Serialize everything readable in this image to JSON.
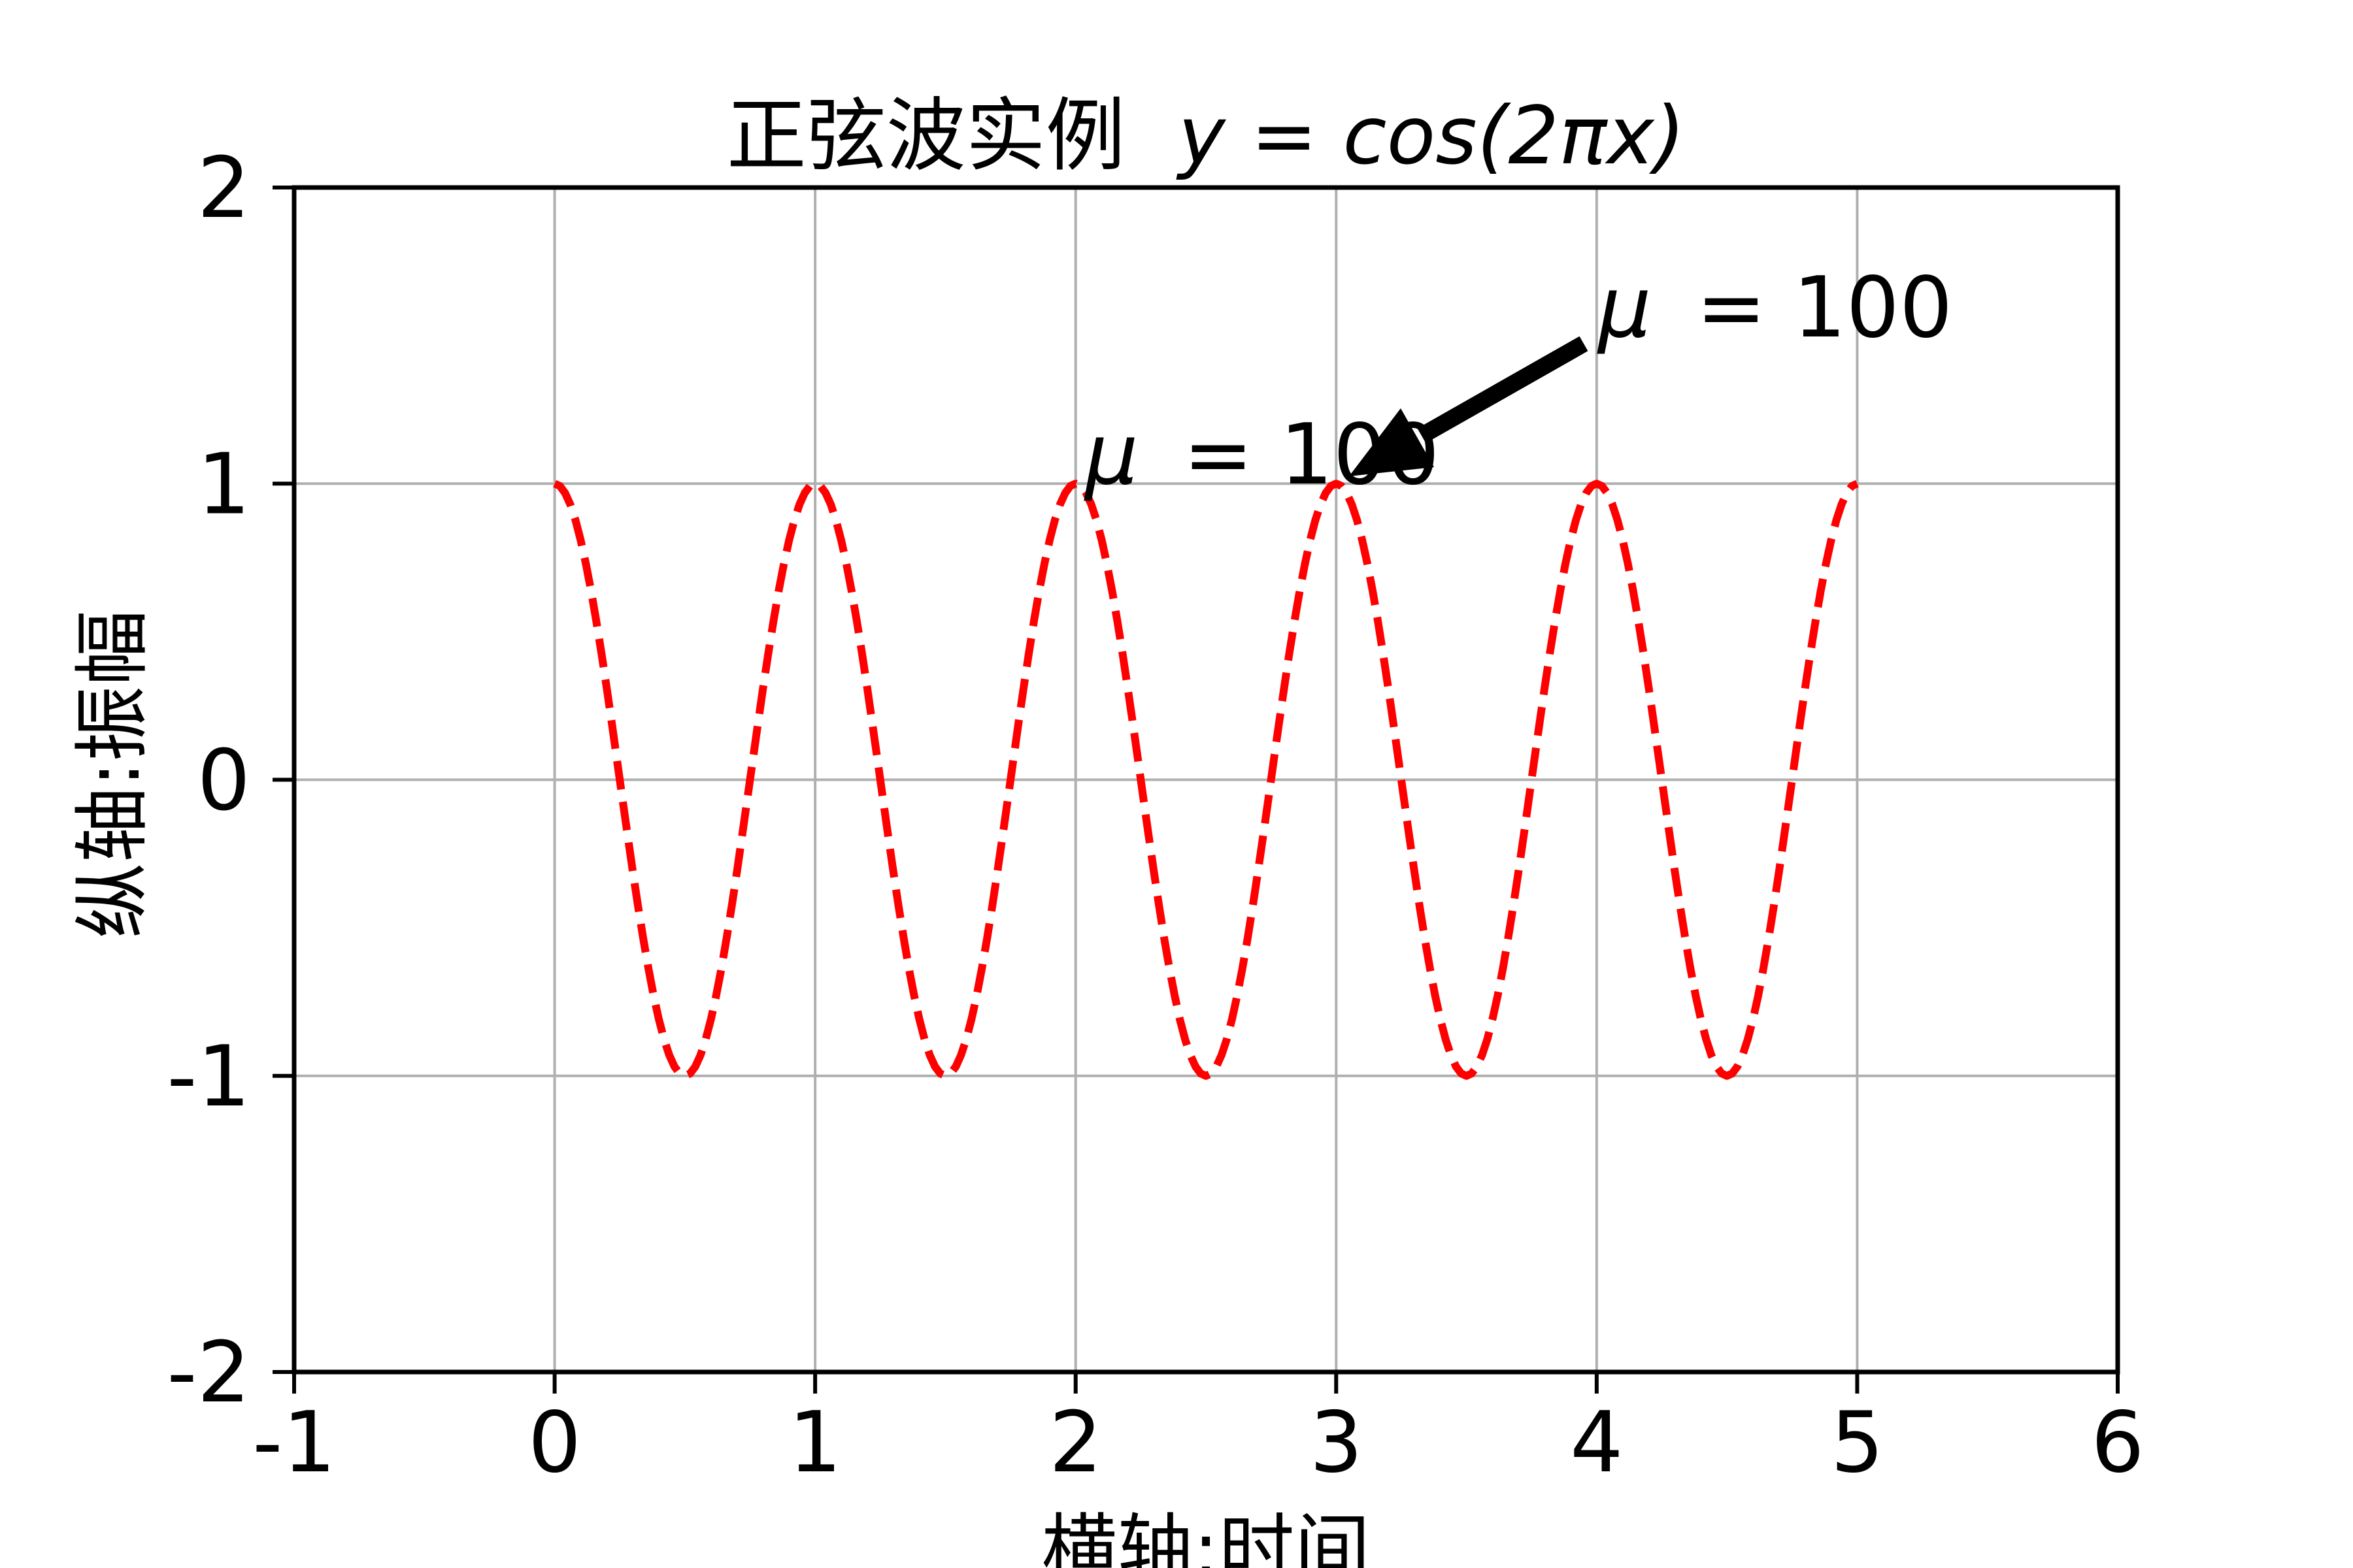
{
  "chart_data": {
    "type": "line",
    "title": "正弦波实例 y = cos(2πx)",
    "title_cjk": "正弦波实例",
    "title_math": "y = cos(2πx)",
    "xlabel": "横轴:时间",
    "ylabel": "纵轴:振幅",
    "xlim": [
      -1,
      6
    ],
    "ylim": [
      -2,
      2
    ],
    "x_ticks": [
      -1,
      0,
      1,
      2,
      3,
      4,
      5,
      6
    ],
    "x_tick_labels": [
      "-1",
      "0",
      "1",
      "2",
      "3",
      "4",
      "5",
      "6"
    ],
    "y_ticks": [
      2,
      1,
      0,
      -1,
      -2
    ],
    "y_tick_labels": [
      "2",
      "1",
      "0",
      "-1",
      "-2"
    ],
    "x_gridlines": [
      0,
      1,
      2,
      3,
      4,
      5
    ],
    "y_gridlines": [
      1,
      0,
      -1
    ],
    "grid": true,
    "legend": null,
    "series": [
      {
        "name": "y = cos(2πx)",
        "formula": "y = cos(2*pi*x)",
        "amplitude": 1,
        "frequency": 1,
        "phase": 0,
        "x_start": 0,
        "x_end": 5,
        "sample_step": 0.02,
        "color": "#ff0000",
        "linestyle": "dashed",
        "peaks_x": [
          0,
          1,
          2,
          3,
          4,
          5
        ],
        "peak_y": 1,
        "troughs_x": [
          0.5,
          1.5,
          2.5,
          3.5,
          4.5
        ],
        "trough_y": -1
      }
    ],
    "annotations": [
      {
        "role": "pointer-label",
        "text": "μ = 100",
        "sym": "μ",
        "rest": "= 100",
        "xy": [
          3,
          1
        ],
        "xytext": [
          4,
          1.5
        ],
        "arrow": true,
        "arrow_color": "#000000"
      },
      {
        "role": "text-label",
        "text": "μ = 100",
        "sym": "μ",
        "rest": "= 100",
        "position": [
          2,
          1
        ],
        "arrow": false
      }
    ]
  },
  "style": {
    "background": "#ffffff",
    "grid_color": "#b0b0b0",
    "spine_color": "#000000",
    "tick_color": "#000000",
    "text_color": "#000000",
    "curve_color": "#ff0000",
    "annotation_arrow_color": "#000000"
  }
}
